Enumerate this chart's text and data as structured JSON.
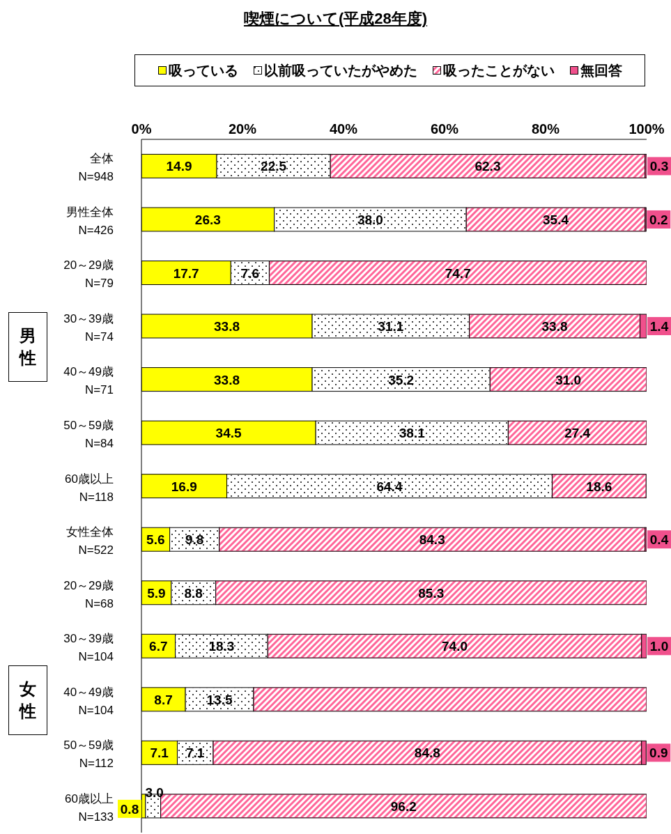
{
  "chart_data": {
    "type": "bar",
    "orientation": "horizontal",
    "stacked": true,
    "title": "喫煙について(平成28年度)",
    "categories": [
      "全体\nN=948",
      "男性全体\nN=426",
      "20～29歳\nN=79",
      "30～39歳\nN=74",
      "40～49歳\nN=71",
      "50～59歳\nN=84",
      "60歳以上\nN=118",
      "女性全体\nN=522",
      "20～29歳\nN=68",
      "30～39歳\nN=104",
      "40～49歳\nN=104",
      "50～59歳\nN=112",
      "60歳以上\nN=133"
    ],
    "series": [
      {
        "name": "吸っている",
        "color": "#ffff00",
        "values": [
          14.9,
          26.3,
          17.7,
          33.8,
          33.8,
          34.5,
          16.9,
          5.6,
          5.9,
          6.7,
          8.7,
          7.1,
          0.8
        ],
        "value_labels": [
          "14.9",
          "26.3",
          "17.7",
          "33.8",
          "33.8",
          "34.5",
          "16.9",
          "5.6",
          "5.9",
          "6.7",
          "8.7",
          "7.1",
          "0.8"
        ]
      },
      {
        "name": "以前吸っていたがやめた",
        "color": "#ffffff",
        "values": [
          22.5,
          38.0,
          7.6,
          31.1,
          35.2,
          38.1,
          64.4,
          9.8,
          8.8,
          18.3,
          13.5,
          7.1,
          3.0
        ],
        "value_labels": [
          "22.5",
          "38.0",
          "7.6",
          "31.1",
          "35.2",
          "38.1",
          "64.4",
          "9.8",
          "8.8",
          "18.3",
          "13.5",
          "7.1",
          "3.0"
        ]
      },
      {
        "name": "吸ったことがない",
        "color": "#ff6699",
        "values": [
          62.3,
          35.4,
          74.7,
          33.8,
          31.0,
          27.4,
          18.6,
          84.3,
          85.3,
          74.0,
          77.8,
          84.8,
          96.2
        ],
        "value_labels": [
          "62.3",
          "35.4",
          "74.7",
          "33.8",
          "31.0",
          "27.4",
          "18.6",
          "84.3",
          "85.3",
          "74.0",
          null,
          "84.8",
          "96.2"
        ]
      },
      {
        "name": "無回答",
        "color": "#f0508c",
        "values": [
          0.3,
          0.2,
          null,
          1.4,
          null,
          null,
          null,
          0.4,
          null,
          1.0,
          null,
          0.9,
          null
        ],
        "value_labels": [
          "0.3",
          "0.2",
          null,
          "1.4",
          null,
          null,
          null,
          "0.4",
          null,
          "1.0",
          null,
          "0.9",
          null
        ]
      }
    ],
    "xlim": [
      0,
      100
    ],
    "xticks": [
      {
        "value": 0,
        "label": "0%"
      },
      {
        "value": 20,
        "label": "20%"
      },
      {
        "value": 40,
        "label": "40%"
      },
      {
        "value": 60,
        "label": "60%"
      },
      {
        "value": 80,
        "label": "80%"
      },
      {
        "value": 100,
        "label": "100%"
      }
    ],
    "legend": "top",
    "annotations": [
      "男性",
      "女性"
    ]
  }
}
